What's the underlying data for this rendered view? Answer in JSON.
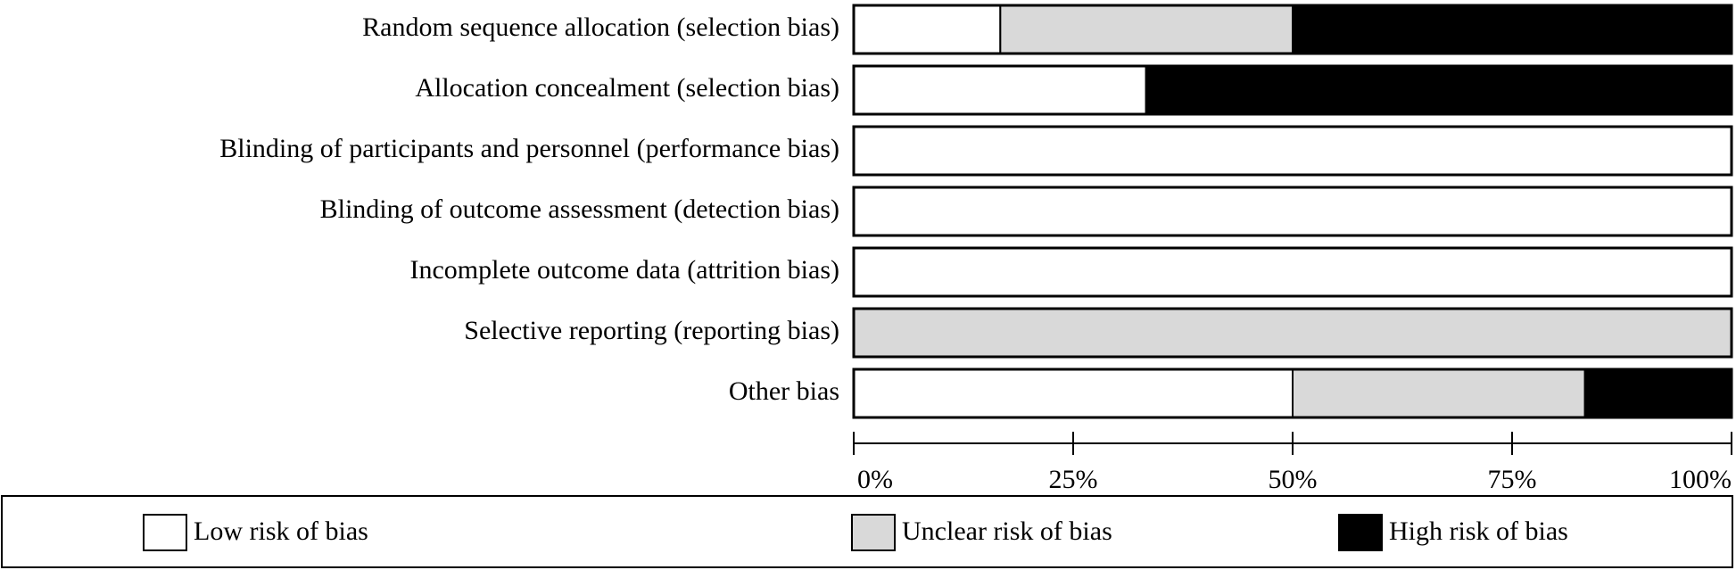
{
  "chart_data": {
    "type": "stacked-bar-horizontal",
    "categories": [
      "Random sequence allocation (selection bias)",
      "Allocation concealment (selection bias)",
      "Blinding of participants and personnel (performance bias)",
      "Blinding of outcome assessment (detection bias)",
      "Incomplete outcome data (attrition bias)",
      "Selective reporting (reporting bias)",
      "Other bias"
    ],
    "series": [
      {
        "name": "Low risk of bias",
        "color": "#ffffff",
        "values": [
          16.7,
          33.3,
          100,
          100,
          100,
          0,
          50
        ]
      },
      {
        "name": "Unclear risk of bias",
        "color": "#d9d9d9",
        "values": [
          33.3,
          0,
          0,
          0,
          0,
          100,
          33.3
        ]
      },
      {
        "name": "High risk of bias",
        "color": "#000000",
        "values": [
          50,
          66.7,
          0,
          0,
          0,
          0,
          16.7
        ]
      }
    ],
    "xlim": [
      0,
      100
    ],
    "xticks": [
      {
        "value": 0,
        "label": "0%"
      },
      {
        "value": 25,
        "label": "25%"
      },
      {
        "value": 50,
        "label": "50%"
      },
      {
        "value": 75,
        "label": "75%"
      },
      {
        "value": 100,
        "label": "100%"
      }
    ]
  }
}
